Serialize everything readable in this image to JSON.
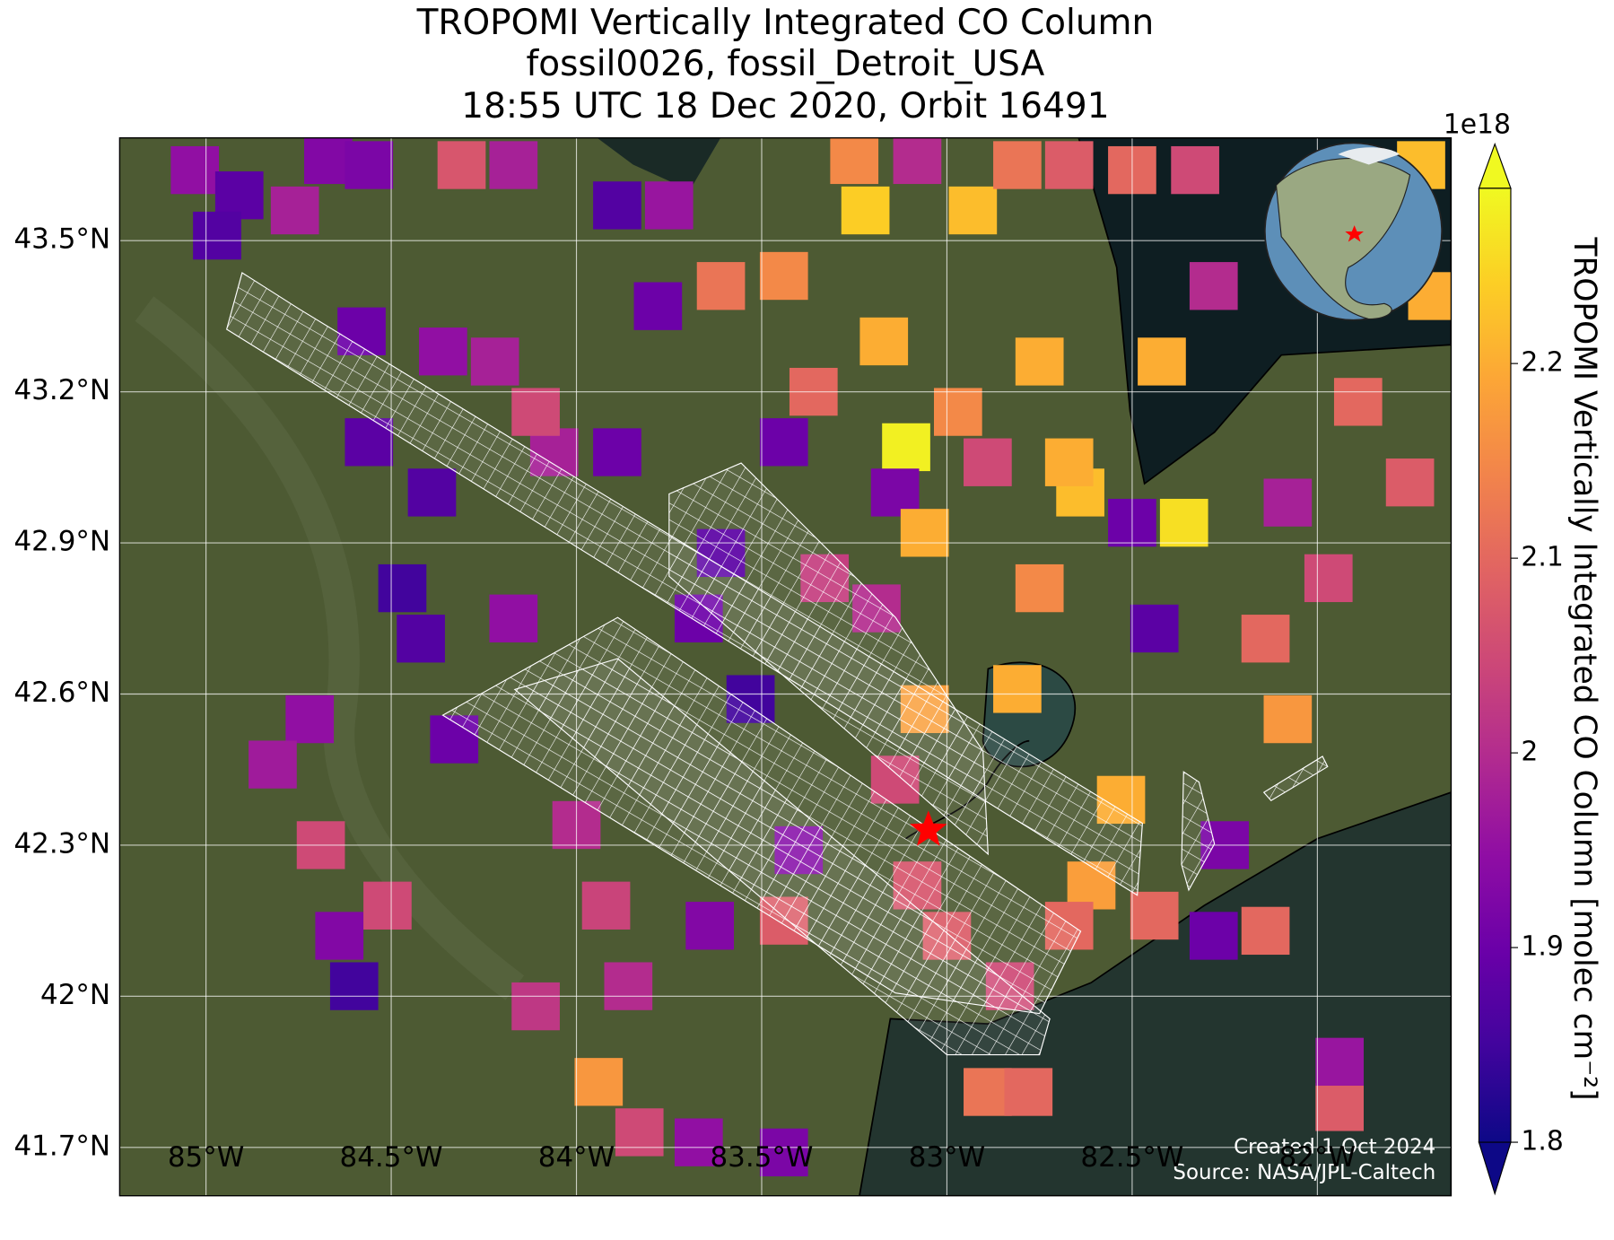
{
  "chart_data": {
    "type": "map",
    "title": [
      "TROPOMI Vertically Integrated CO Column",
      "fossil0026, fossil_Detroit_USA",
      "18:55 UTC 18 Dec 2020, Orbit 16491"
    ],
    "xlim": [
      -85.233,
      -81.639
    ],
    "ylim": [
      41.604,
      43.704
    ],
    "xticks": [
      {
        "value": -85,
        "label": "85°W"
      },
      {
        "value": -84.5,
        "label": "84.5°W"
      },
      {
        "value": -84,
        "label": "84°W"
      },
      {
        "value": -83.5,
        "label": "83.5°W"
      },
      {
        "value": -83,
        "label": "83°W"
      },
      {
        "value": -82.5,
        "label": "82.5°W"
      },
      {
        "value": -82,
        "label": "82°W"
      }
    ],
    "yticks": [
      {
        "value": 41.7,
        "label": "41.7°N"
      },
      {
        "value": 42,
        "label": "42°N"
      },
      {
        "value": 42.3,
        "label": "42.3°N"
      },
      {
        "value": 42.6,
        "label": "42.6°N"
      },
      {
        "value": 42.9,
        "label": "42.9°N"
      },
      {
        "value": 43.2,
        "label": "43.2°N"
      },
      {
        "value": 43.5,
        "label": "43.5°N"
      }
    ],
    "grid": true,
    "colormap": "plasma",
    "colorbar": {
      "label": "TROPOMI Vertically Integrated CO Column [molec cm⁻²]",
      "offset_label": "1e18",
      "clim": [
        1.8,
        2.29
      ],
      "ticks": [
        1.8,
        1.9,
        2.0,
        2.1,
        2.2
      ]
    },
    "x": [
      -85.03,
      -84.91,
      -84.76,
      -84.97,
      -84.67,
      -84.56,
      -84.31,
      -84.17,
      -83.89,
      -83.75,
      -83.78,
      -83.61,
      -83.44,
      -83.25,
      -83.22,
      -83.08,
      -82.93,
      -82.81,
      -82.67,
      -82.5,
      -82.33,
      -81.72,
      -81.69,
      -83.17,
      -83.11,
      -83.14,
      -83.06,
      -82.75,
      -82.64,
      -82.36,
      -82.5,
      -82.44,
      -82.14,
      -82.08,
      -82.53,
      -82.61,
      -82.81,
      -82.83,
      -82.89,
      -82.78,
      -81.94,
      -81.94,
      -82.14,
      -82.28,
      -82.25,
      -82.44,
      -83.94,
      -83.83,
      -83.67,
      -83.44,
      -84.11,
      -83.86,
      -84.6,
      -84.64,
      -84.51,
      -84.69,
      -84.72,
      -84.82,
      -84.42,
      -84.47,
      -84.33,
      -84.17,
      -83.92,
      -84.0,
      -83.53,
      -83.4,
      -83.64,
      -83.44,
      -84.06,
      -83.89,
      -84.11,
      -84.22,
      -84.36,
      -84.58,
      -84.56,
      -84.39,
      -83.36,
      -83.44,
      -82.97,
      -82.67,
      -82.89,
      -82.28,
      -81.89,
      -81.75,
      -82.08,
      -81.97,
      -82.42,
      -82.75,
      -83.33,
      -83.19,
      -83.06,
      -83.14,
      -83.08,
      -83.0,
      -82.67,
      -83.67,
      -83.61
    ],
    "y": [
      43.64,
      43.59,
      43.56,
      43.51,
      43.66,
      43.65,
      43.65,
      43.65,
      43.57,
      43.57,
      43.37,
      43.41,
      43.43,
      43.66,
      43.56,
      43.66,
      43.56,
      43.65,
      43.65,
      43.64,
      43.64,
      43.65,
      43.39,
      43.3,
      43.09,
      43.0,
      42.92,
      43.26,
      43.0,
      42.94,
      42.94,
      42.73,
      42.71,
      42.55,
      42.39,
      42.22,
      42.61,
      42.02,
      41.81,
      41.81,
      41.78,
      41.87,
      42.13,
      42.12,
      42.3,
      42.16,
      41.83,
      41.73,
      41.71,
      41.69,
      41.98,
      42.02,
      42.02,
      42.12,
      42.18,
      42.3,
      42.55,
      42.46,
      42.71,
      42.81,
      42.51,
      42.75,
      42.18,
      42.34,
      42.59,
      42.29,
      42.14,
      42.15,
      43.08,
      43.08,
      43.16,
      43.26,
      43.28,
      43.32,
      43.1,
      43.0,
      43.2,
      43.1,
      43.16,
      43.06,
      43.06,
      43.41,
      43.18,
      43.02,
      42.98,
      42.83,
      43.26,
      42.81,
      42.83,
      42.77,
      42.57,
      42.43,
      42.22,
      42.12,
      42.14,
      42.75,
      42.88
    ],
    "values": [
      1.95,
      1.88,
      1.98,
      1.87,
      1.93,
      1.92,
      2.07,
      1.98,
      1.87,
      1.96,
      1.9,
      2.12,
      2.15,
      2.15,
      2.24,
      2.0,
      2.22,
      2.12,
      2.08,
      2.1,
      2.05,
      2.22,
      2.2,
      2.2,
      2.28,
      1.92,
      2.2,
      2.2,
      2.22,
      2.26,
      1.9,
      1.88,
      2.1,
      2.17,
      2.2,
      2.18,
      2.2,
      2.05,
      2.12,
      2.1,
      2.08,
      1.96,
      2.1,
      1.9,
      1.92,
      2.1,
      2.17,
      2.05,
      1.95,
      1.92,
      2.02,
      2.0,
      1.85,
      1.93,
      2.05,
      2.05,
      1.95,
      1.97,
      1.87,
      1.85,
      1.9,
      1.95,
      2.04,
      2.0,
      1.85,
      1.93,
      1.93,
      2.08,
      1.98,
      1.9,
      2.05,
      1.98,
      1.95,
      1.9,
      1.88,
      1.87,
      2.1,
      1.9,
      2.15,
      2.2,
      2.05,
      2.0,
      2.1,
      2.08,
      1.98,
      2.05,
      2.2,
      2.15,
      2.03,
      2.0,
      2.18,
      2.05,
      2.07,
      2.08,
      2.1,
      1.9,
      1.88
    ],
    "marker": {
      "lon": -83.05,
      "lat": 42.33,
      "color": "#ff0000"
    },
    "annotations": [
      "Created 1 Oct 2024",
      "Source: NASA/JPL-Caltech"
    ]
  }
}
